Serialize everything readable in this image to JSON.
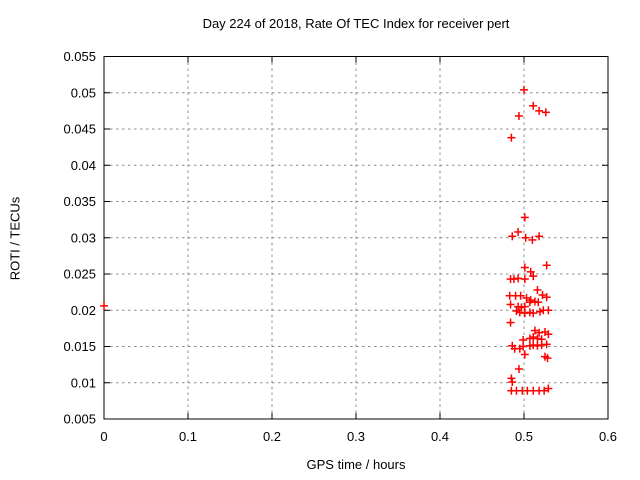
{
  "chart_data": {
    "type": "scatter",
    "title": "Day 224 of 2018, Rate Of TEC Index for receiver pert",
    "xlabel": "GPS time / hours",
    "ylabel": "ROTI / TECUs",
    "xlim": [
      0,
      0.6
    ],
    "ylim": [
      0.005,
      0.055
    ],
    "grid": true,
    "legend_position": "none",
    "marker": "plus",
    "marker_color": "#ff0000",
    "grid_color": "#8c8c8c",
    "border_color": "#000000",
    "background_color": "#ffffff",
    "x_ticks": [
      {
        "value": 0.0,
        "label": "0"
      },
      {
        "value": 0.1,
        "label": "0.1"
      },
      {
        "value": 0.2,
        "label": "0.2"
      },
      {
        "value": 0.3,
        "label": "0.3"
      },
      {
        "value": 0.4,
        "label": "0.4"
      },
      {
        "value": 0.5,
        "label": "0.5"
      },
      {
        "value": 0.6,
        "label": "0.6"
      }
    ],
    "y_ticks": [
      {
        "value": 0.005,
        "label": "0.005"
      },
      {
        "value": 0.01,
        "label": "0.01"
      },
      {
        "value": 0.015,
        "label": "0.015"
      },
      {
        "value": 0.02,
        "label": "0.02"
      },
      {
        "value": 0.025,
        "label": "0.025"
      },
      {
        "value": 0.03,
        "label": "0.03"
      },
      {
        "value": 0.035,
        "label": "0.035"
      },
      {
        "value": 0.04,
        "label": "0.04"
      },
      {
        "value": 0.045,
        "label": "0.045"
      },
      {
        "value": 0.05,
        "label": "0.05"
      },
      {
        "value": 0.055,
        "label": "0.055"
      }
    ],
    "series": [
      {
        "name": "ROTI",
        "points": [
          [
            0.0,
            0.0206
          ],
          [
            0.5,
            0.0504
          ],
          [
            0.511,
            0.0482
          ],
          [
            0.494,
            0.0468
          ],
          [
            0.518,
            0.0475
          ],
          [
            0.526,
            0.0473
          ],
          [
            0.485,
            0.0438
          ],
          [
            0.501,
            0.0328
          ],
          [
            0.493,
            0.0308
          ],
          [
            0.486,
            0.0302
          ],
          [
            0.502,
            0.03
          ],
          [
            0.51,
            0.0297
          ],
          [
            0.518,
            0.0302
          ],
          [
            0.501,
            0.0259
          ],
          [
            0.527,
            0.0262
          ],
          [
            0.508,
            0.0253
          ],
          [
            0.484,
            0.0243
          ],
          [
            0.488,
            0.0243
          ],
          [
            0.493,
            0.0244
          ],
          [
            0.501,
            0.0243
          ],
          [
            0.511,
            0.0247
          ],
          [
            0.516,
            0.0228
          ],
          [
            0.483,
            0.022
          ],
          [
            0.49,
            0.022
          ],
          [
            0.496,
            0.022
          ],
          [
            0.503,
            0.0217
          ],
          [
            0.508,
            0.0214
          ],
          [
            0.513,
            0.0212
          ],
          [
            0.522,
            0.0221
          ],
          [
            0.527,
            0.0218
          ],
          [
            0.484,
            0.0208
          ],
          [
            0.493,
            0.0205
          ],
          [
            0.497,
            0.0204
          ],
          [
            0.501,
            0.0205
          ],
          [
            0.507,
            0.0211
          ],
          [
            0.517,
            0.0211
          ],
          [
            0.491,
            0.0199
          ],
          [
            0.495,
            0.0197
          ],
          [
            0.501,
            0.0196
          ],
          [
            0.507,
            0.0197
          ],
          [
            0.511,
            0.0196
          ],
          [
            0.519,
            0.0198
          ],
          [
            0.523,
            0.02
          ],
          [
            0.529,
            0.02
          ],
          [
            0.484,
            0.0183
          ],
          [
            0.513,
            0.0172
          ],
          [
            0.518,
            0.0169
          ],
          [
            0.525,
            0.017
          ],
          [
            0.529,
            0.0167
          ],
          [
            0.499,
            0.0159
          ],
          [
            0.507,
            0.0161
          ],
          [
            0.511,
            0.0163
          ],
          [
            0.516,
            0.0161
          ],
          [
            0.521,
            0.016
          ],
          [
            0.486,
            0.0151
          ],
          [
            0.489,
            0.0147
          ],
          [
            0.495,
            0.0147
          ],
          [
            0.499,
            0.015
          ],
          [
            0.507,
            0.0151
          ],
          [
            0.511,
            0.0152
          ],
          [
            0.516,
            0.0151
          ],
          [
            0.521,
            0.0152
          ],
          [
            0.527,
            0.0153
          ],
          [
            0.501,
            0.0139
          ],
          [
            0.525,
            0.0136
          ],
          [
            0.528,
            0.0134
          ],
          [
            0.494,
            0.0119
          ],
          [
            0.485,
            0.0106
          ],
          [
            0.486,
            0.0101
          ],
          [
            0.485,
            0.0089
          ],
          [
            0.491,
            0.0089
          ],
          [
            0.498,
            0.0089
          ],
          [
            0.504,
            0.0089
          ],
          [
            0.511,
            0.0089
          ],
          [
            0.518,
            0.0089
          ],
          [
            0.524,
            0.0089
          ],
          [
            0.529,
            0.0092
          ]
        ]
      }
    ]
  }
}
